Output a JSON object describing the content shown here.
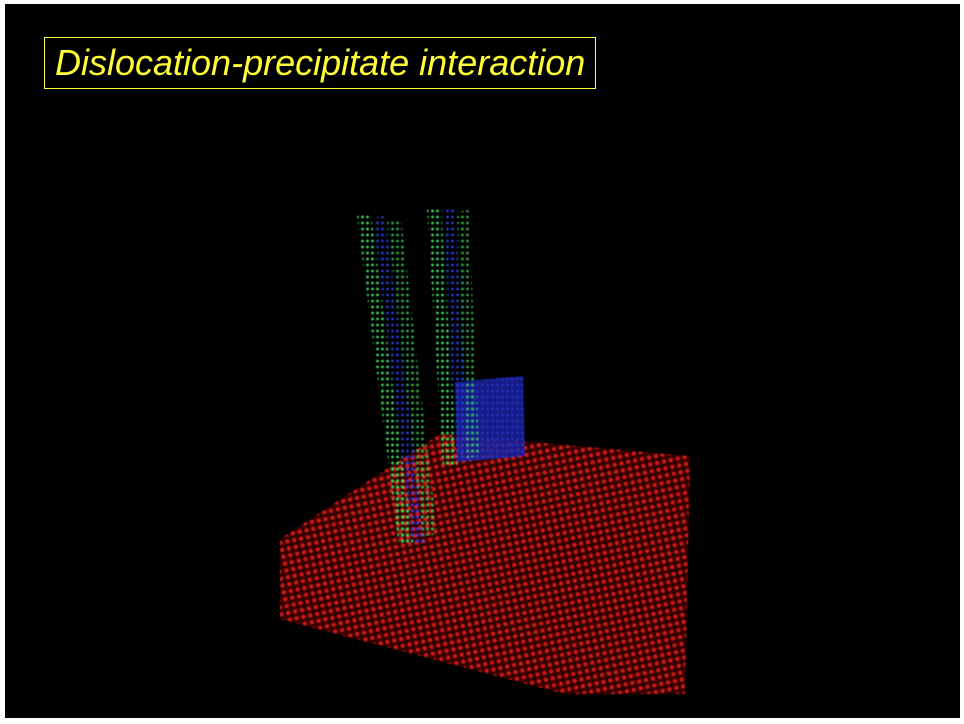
{
  "title": "Dislocation-precipitate interaction"
}
